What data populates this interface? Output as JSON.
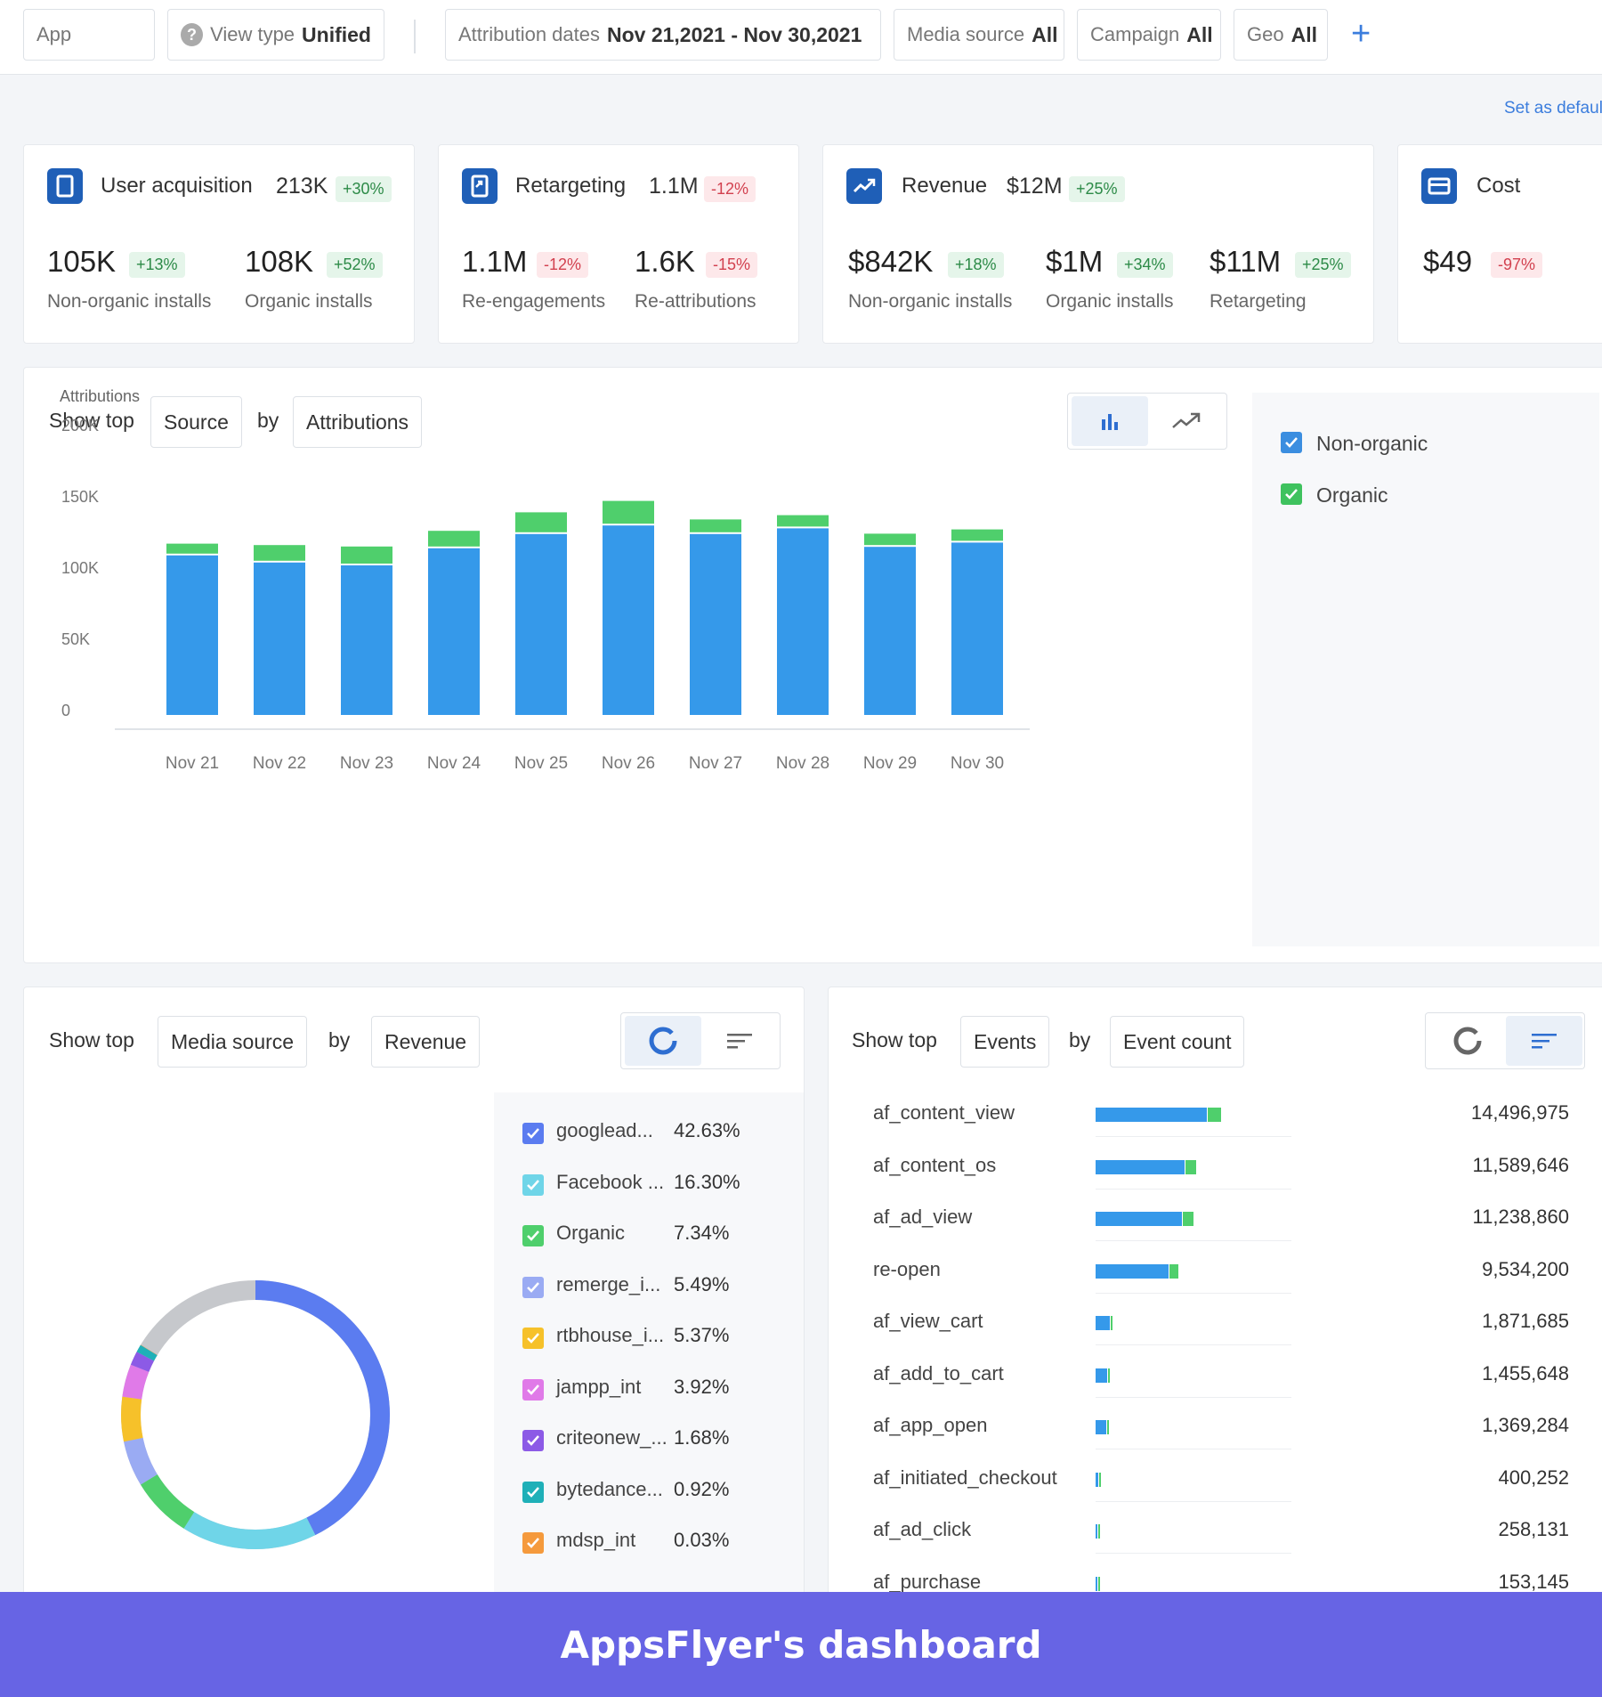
{
  "filters": {
    "app_label": "App",
    "view_type_label": "View type",
    "view_type_value": "Unified",
    "dates_label": "Attribution dates",
    "dates_value": "Nov 21,2021 - Nov 30,2021",
    "media_label": "Media source",
    "media_value": "All",
    "campaign_label": "Campaign",
    "campaign_value": "All",
    "geo_label": "Geo",
    "geo_value": "All",
    "add_icon": "plus-icon",
    "set_default": "Set as default"
  },
  "kpis": {
    "ua": {
      "title": "User acquisition",
      "total": "213K",
      "total_change": "+30%",
      "m1_value": "105K",
      "m1_change": "+13%",
      "m1_label": "Non-organic installs",
      "m2_value": "108K",
      "m2_change": "+52%",
      "m2_label": "Organic installs"
    },
    "rt": {
      "title": "Retargeting",
      "total": "1.1M",
      "total_change": "-12%",
      "m1_value": "1.1M",
      "m1_change": "-12%",
      "m1_label": "Re-engagements",
      "m2_value": "1.6K",
      "m2_change": "-15%",
      "m2_label": "Re-attributions"
    },
    "rev": {
      "title": "Revenue",
      "total": "$12M",
      "total_change": "+25%",
      "m1_value": "$842K",
      "m1_change": "+18%",
      "m1_label": "Non-organic installs",
      "m2_value": "$1M",
      "m2_change": "+34%",
      "m2_label": "Organic installs",
      "m3_value": "$11M",
      "m3_change": "+25%",
      "m3_label": "Retargeting"
    },
    "cost": {
      "title": "Cost",
      "m1_value": "$49",
      "m1_change": "-97%"
    }
  },
  "main_chart_panel": {
    "show_top": "Show top",
    "dim": "Source",
    "by": "by",
    "metric": "Attributions",
    "legend": [
      "Non-organic",
      "Organic"
    ]
  },
  "colors": {
    "non_organic": "#3599ea",
    "organic": "#4fcf6c",
    "accent": "#1f5fb7"
  },
  "chart_data": {
    "type": "bar",
    "stacked": true,
    "title": "",
    "ylabel": "Attributions",
    "ylim": [
      0,
      200000
    ],
    "yticks": [
      "0",
      "50K",
      "100K",
      "150K",
      "200K"
    ],
    "categories": [
      "Nov 21",
      "Nov 22",
      "Nov 23",
      "Nov 24",
      "Nov 25",
      "Nov 26",
      "Nov 27",
      "Nov 28",
      "Nov 29",
      "Nov 30"
    ],
    "series": [
      {
        "name": "Non-organic",
        "values": [
          112000,
          107000,
          105000,
          117000,
          127000,
          133000,
          127000,
          131000,
          118000,
          121000
        ]
      },
      {
        "name": "Organic",
        "values": [
          7000,
          11000,
          12000,
          11000,
          14000,
          16000,
          9000,
          8000,
          8000,
          8000
        ]
      }
    ]
  },
  "media_panel": {
    "show_top": "Show top",
    "dim": "Media source",
    "by": "by",
    "metric": "Revenue",
    "items": [
      {
        "name": "googlead...",
        "pct": "42.63%",
        "value": 42.63,
        "color": "#5b7cf0"
      },
      {
        "name": "Facebook ...",
        "pct": "16.30%",
        "value": 16.3,
        "color": "#6fd5e8"
      },
      {
        "name": "Organic",
        "pct": "7.34%",
        "value": 7.34,
        "color": "#4fcf6c"
      },
      {
        "name": "remerge_i...",
        "pct": "5.49%",
        "value": 5.49,
        "color": "#9aabf3"
      },
      {
        "name": "rtbhouse_i...",
        "pct": "5.37%",
        "value": 5.37,
        "color": "#f6c12a"
      },
      {
        "name": "jampp_int",
        "pct": "3.92%",
        "value": 3.92,
        "color": "#e07ae8"
      },
      {
        "name": "criteonew_...",
        "pct": "1.68%",
        "value": 1.68,
        "color": "#8c5ae6"
      },
      {
        "name": "bytedance...",
        "pct": "0.92%",
        "value": 0.92,
        "color": "#1fb0b8"
      },
      {
        "name": "mdsp_int",
        "pct": "0.03%",
        "value": 0.03,
        "color": "#f59a3c"
      }
    ],
    "donut_other_color": "#c6c8cc"
  },
  "events_panel": {
    "show_top": "Show top",
    "dim": "Events",
    "by": "by",
    "metric": "Event count",
    "items": [
      {
        "name": "af_content_view",
        "count": "14,496,975",
        "value": 14496975
      },
      {
        "name": "af_content_os",
        "count": "11,589,646",
        "value": 11589646
      },
      {
        "name": "af_ad_view",
        "count": "11,238,860",
        "value": 11238860
      },
      {
        "name": "re-open",
        "count": "9,534,200",
        "value": 9534200
      },
      {
        "name": "af_view_cart",
        "count": "1,871,685",
        "value": 1871685
      },
      {
        "name": "af_add_to_cart",
        "count": "1,455,648",
        "value": 1455648
      },
      {
        "name": "af_app_open",
        "count": "1,369,284",
        "value": 1369284
      },
      {
        "name": "af_initiated_checkout",
        "count": "400,252",
        "value": 400252
      },
      {
        "name": "af_ad_click",
        "count": "258,131",
        "value": 258131
      },
      {
        "name": "af_purchase",
        "count": "153,145",
        "value": 153145
      }
    ]
  },
  "footer": {
    "caption": "AppsFlyer's dashboard"
  }
}
